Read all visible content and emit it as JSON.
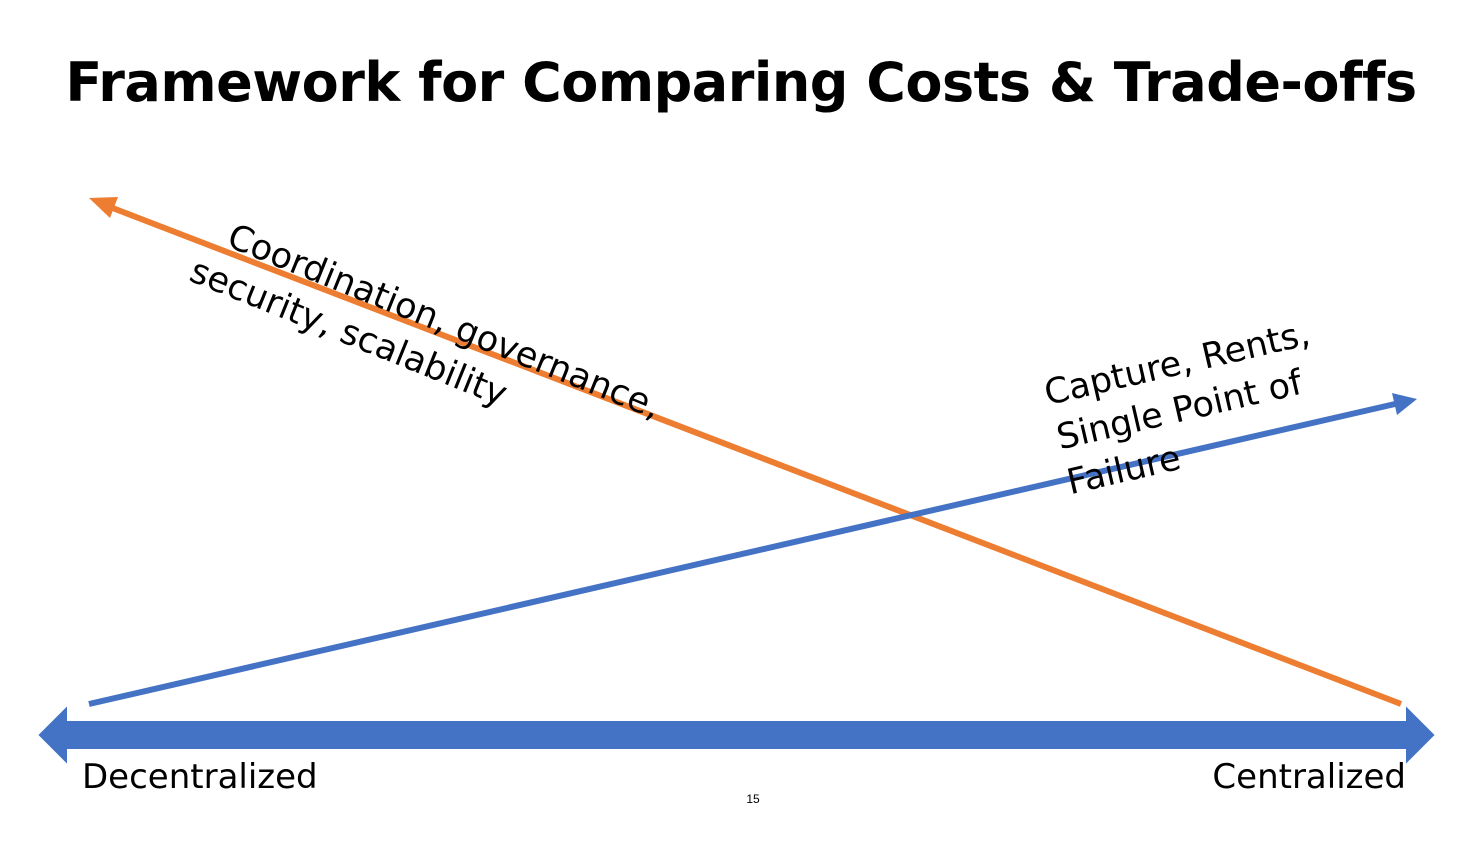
{
  "slide": {
    "title": "Framework for Comparing Costs & Trade-offs",
    "page_number": "15"
  },
  "axis": {
    "left_label": "Decentralized",
    "right_label": "Centralized",
    "color": "#4472C4"
  },
  "orange_arrow": {
    "color": "#ED7D31",
    "label_lines": [
      "Coordination, governance,",
      "security, scalability"
    ]
  },
  "blue_arrow": {
    "color": "#4472C4",
    "label_lines": [
      "Capture, Rents,",
      "Single Point of",
      "Failure"
    ]
  }
}
